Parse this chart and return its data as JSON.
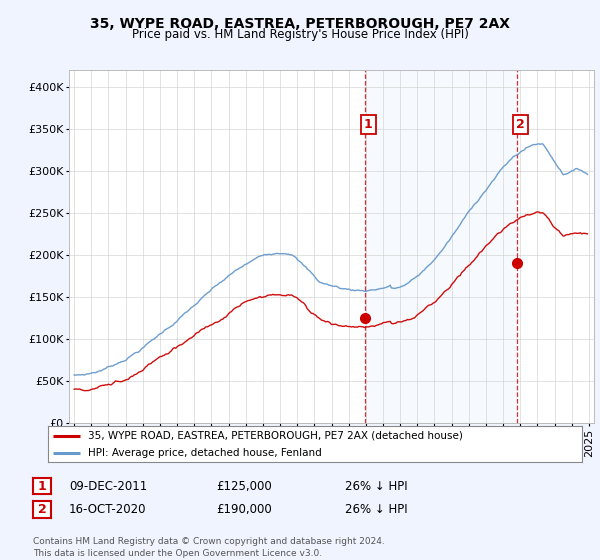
{
  "title": "35, WYPE ROAD, EASTREA, PETERBOROUGH, PE7 2AX",
  "subtitle": "Price paid vs. HM Land Registry's House Price Index (HPI)",
  "legend_line1": "35, WYPE ROAD, EASTREA, PETERBOROUGH, PE7 2AX (detached house)",
  "legend_line2": "HPI: Average price, detached house, Fenland",
  "annotation1_date": "09-DEC-2011",
  "annotation1_price": "£125,000",
  "annotation1_hpi": "26% ↓ HPI",
  "annotation2_date": "16-OCT-2020",
  "annotation2_price": "£190,000",
  "annotation2_hpi": "26% ↓ HPI",
  "footer": "Contains HM Land Registry data © Crown copyright and database right 2024.\nThis data is licensed under the Open Government Licence v3.0.",
  "red_color": "#cc0000",
  "blue_color": "#6699cc",
  "shade_color": "#ddeeff",
  "background_color": "#f0f4ff",
  "plot_bg_color": "#ffffff",
  "ylim": [
    0,
    420000
  ],
  "yticks": [
    0,
    50000,
    100000,
    150000,
    200000,
    250000,
    300000,
    350000,
    400000
  ],
  "sale1_x": 2011.94,
  "sale1_y": 125000,
  "sale2_x": 2020.79,
  "sale2_y": 190000,
  "xmin": 1994.7,
  "xmax": 2025.3
}
